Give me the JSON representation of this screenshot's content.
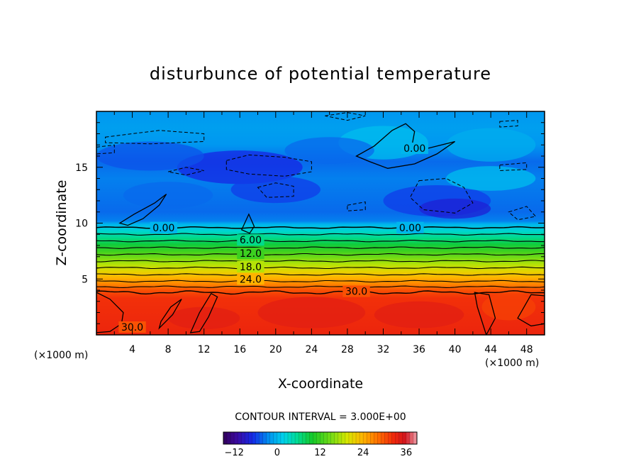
{
  "chart_data": {
    "type": "heatmap",
    "subtype": "filled-contour",
    "title": "disturbunce of potential temperature",
    "xlabel": "X-coordinate",
    "ylabel": "Z-coordinate",
    "x_unit": "(×1000 m)",
    "y_unit": "(×1000 m)",
    "xlim": [
      0,
      50
    ],
    "ylim": [
      0,
      20
    ],
    "x_ticks": [
      4,
      8,
      12,
      16,
      20,
      24,
      28,
      32,
      36,
      40,
      44,
      48
    ],
    "y_ticks": [
      5,
      10,
      15
    ],
    "contour_interval_text": "CONTOUR INTERVAL = 3.000E+00",
    "contour_interval": 3,
    "contour_labels": [
      {
        "text": "0.00",
        "x": 7.5,
        "z": 9.6
      },
      {
        "text": "0.00",
        "x": 35.0,
        "z": 9.6
      },
      {
        "text": "0.00",
        "x": 35.5,
        "z": 16.7
      },
      {
        "text": "6.00",
        "x": 17.2,
        "z": 8.5
      },
      {
        "text": "12.0",
        "x": 17.2,
        "z": 7.3
      },
      {
        "text": "18.0",
        "x": 17.2,
        "z": 6.1
      },
      {
        "text": "24.0",
        "x": 17.2,
        "z": 5.0
      },
      {
        "text": "30.0",
        "x": 29.0,
        "z": 3.9
      },
      {
        "text": "30.0",
        "x": 4.0,
        "z": 0.7
      }
    ],
    "colorbar": {
      "min": -15,
      "max": 39,
      "tick_values": [
        -12,
        0,
        12,
        24,
        36
      ],
      "tick_labels": [
        "−12",
        "0",
        "12",
        "24",
        "36"
      ]
    },
    "approx_profile": [
      {
        "z_range": [
          0,
          4
        ],
        "value": 33
      },
      {
        "z_range": [
          4,
          10
        ],
        "value": "30 → 0 (linear decrease)"
      },
      {
        "z_range": [
          10,
          20
        ],
        "value": "-6 to 3"
      }
    ]
  }
}
